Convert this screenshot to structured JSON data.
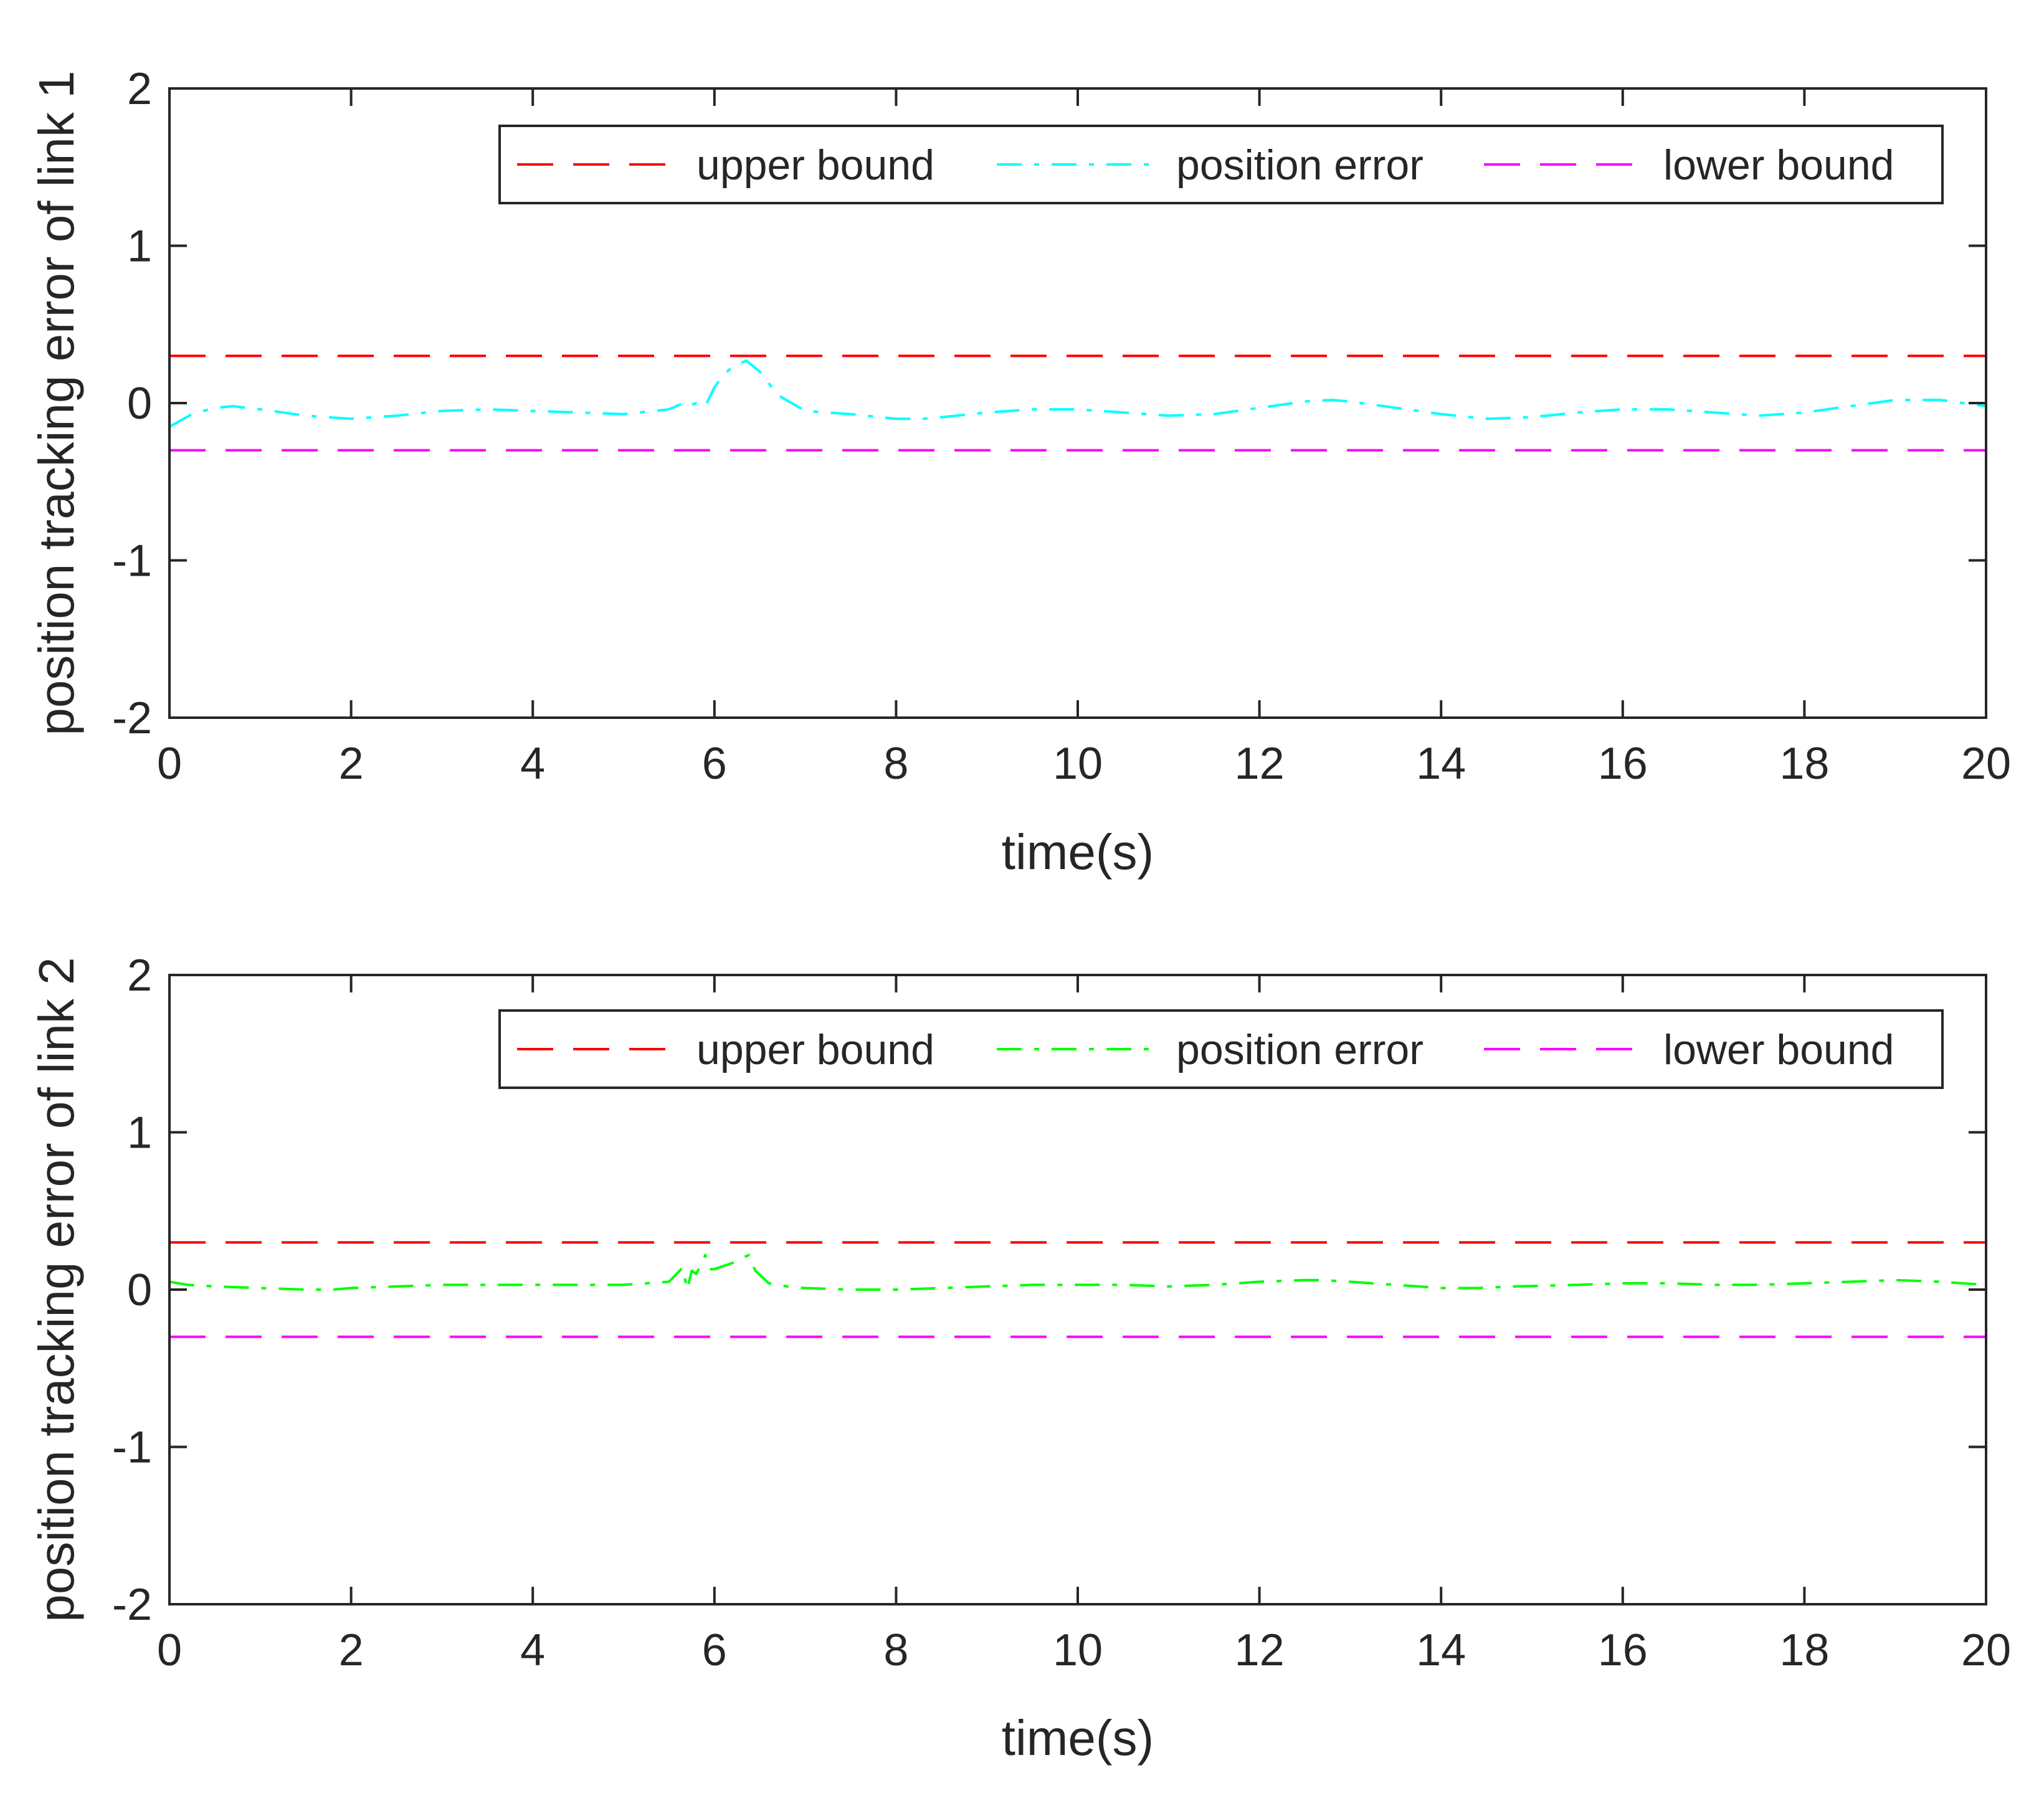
{
  "chart_data": [
    {
      "type": "line",
      "xlabel": "time(s)",
      "ylabel": "position tracking error of link 1",
      "xlim": [
        0,
        20
      ],
      "ylim": [
        -2,
        2
      ],
      "xticks": [
        0,
        2,
        4,
        6,
        8,
        10,
        12,
        14,
        16,
        18,
        20
      ],
      "xtick_labels": [
        "0",
        "2",
        "4",
        "6",
        "8",
        "10",
        "12",
        "14",
        "16",
        "18",
        "20"
      ],
      "yticks": [
        2,
        1,
        0,
        -1,
        -2
      ],
      "ytick_labels": [
        "2",
        "1",
        "0",
        "-1",
        "-2"
      ],
      "grid": false,
      "legend_position": "top-right",
      "series": [
        {
          "name": "upper bound",
          "color": "#ff0000",
          "style": "dashed",
          "x": [
            0,
            20
          ],
          "y": [
            0.3,
            0.3
          ]
        },
        {
          "name": "position error",
          "color": "#00ffff",
          "style": "dashdot",
          "x": [
            0,
            0.25,
            0.5,
            0.7,
            1.0,
            1.5,
            2.0,
            2.5,
            3.0,
            3.5,
            4.0,
            4.5,
            5.0,
            5.5,
            5.7,
            5.75,
            5.8,
            5.9,
            6.0,
            6.1,
            6.2,
            6.35,
            6.5,
            6.7,
            7.0,
            7.5,
            8.0,
            8.3,
            8.5,
            9.0,
            9.5,
            10.0,
            10.5,
            11.0,
            11.5,
            12.0,
            12.5,
            12.8,
            13.0,
            13.5,
            14.0,
            14.5,
            15.0,
            15.5,
            16.0,
            16.5,
            17.0,
            17.5,
            18.0,
            18.5,
            19.0,
            19.5,
            20.0
          ],
          "y": [
            -0.15,
            -0.07,
            -0.03,
            -0.02,
            -0.04,
            -0.08,
            -0.1,
            -0.08,
            -0.05,
            -0.04,
            -0.05,
            -0.06,
            -0.07,
            -0.04,
            0.01,
            -0.01,
            0.0,
            -0.02,
            0.1,
            0.18,
            0.23,
            0.27,
            0.2,
            0.05,
            -0.05,
            -0.07,
            -0.1,
            -0.1,
            -0.09,
            -0.06,
            -0.04,
            -0.04,
            -0.06,
            -0.08,
            -0.07,
            -0.03,
            0.01,
            0.02,
            0.01,
            -0.03,
            -0.07,
            -0.1,
            -0.09,
            -0.06,
            -0.04,
            -0.04,
            -0.06,
            -0.08,
            -0.06,
            -0.02,
            0.02,
            0.02,
            -0.02
          ]
        },
        {
          "name": "lower bound",
          "color": "#ff00ff",
          "style": "dashed",
          "x": [
            0,
            20
          ],
          "y": [
            -0.3,
            -0.3
          ]
        }
      ]
    },
    {
      "type": "line",
      "xlabel": "time(s)",
      "ylabel": "position tracking error of link 2",
      "xlim": [
        0,
        20
      ],
      "ylim": [
        -2,
        2
      ],
      "xticks": [
        0,
        2,
        4,
        6,
        8,
        10,
        12,
        14,
        16,
        18,
        20
      ],
      "xtick_labels": [
        "0",
        "2",
        "4",
        "6",
        "8",
        "10",
        "12",
        "14",
        "16",
        "18",
        "20"
      ],
      "yticks": [
        2,
        1,
        0,
        -1,
        -2
      ],
      "ytick_labels": [
        "2",
        "1",
        "0",
        "-1",
        "-2"
      ],
      "grid": false,
      "legend_position": "top-right",
      "series": [
        {
          "name": "upper bound",
          "color": "#ff0000",
          "style": "dashed",
          "x": [
            0,
            20
          ],
          "y": [
            0.3,
            0.3
          ]
        },
        {
          "name": "position error",
          "color": "#00ff00",
          "style": "dashdot",
          "x": [
            0,
            0.2,
            0.5,
            1.0,
            1.5,
            1.8,
            2.0,
            2.5,
            3.0,
            3.5,
            4.0,
            4.5,
            5.0,
            5.5,
            5.65,
            5.7,
            5.75,
            5.8,
            5.85,
            5.9,
            5.95,
            6.0,
            6.1,
            6.2,
            6.3,
            6.38,
            6.45,
            6.6,
            6.8,
            7.0,
            7.5,
            8.0,
            8.5,
            9.0,
            9.5,
            10.0,
            10.5,
            11.0,
            11.5,
            12.0,
            12.5,
            12.7,
            13.0,
            13.5,
            14.0,
            14.4,
            14.8,
            15.5,
            16.0,
            16.5,
            17.0,
            17.5,
            18.0,
            18.5,
            19.0,
            19.5,
            20.0
          ],
          "y": [
            0.05,
            0.03,
            0.02,
            0.01,
            0.0,
            0.0,
            0.01,
            0.02,
            0.03,
            0.03,
            0.03,
            0.03,
            0.03,
            0.05,
            0.14,
            0.0,
            0.12,
            0.1,
            0.16,
            0.22,
            0.13,
            0.13,
            0.15,
            0.17,
            0.2,
            0.22,
            0.12,
            0.04,
            0.02,
            0.01,
            0.0,
            0.0,
            0.01,
            0.02,
            0.03,
            0.03,
            0.03,
            0.02,
            0.03,
            0.05,
            0.06,
            0.06,
            0.05,
            0.03,
            0.01,
            0.01,
            0.02,
            0.03,
            0.04,
            0.04,
            0.03,
            0.03,
            0.04,
            0.05,
            0.06,
            0.05,
            0.03
          ]
        },
        {
          "name": "lower bound",
          "color": "#ff00ff",
          "style": "dashed",
          "x": [
            0,
            20
          ],
          "y": [
            -0.3,
            -0.3
          ]
        }
      ]
    }
  ]
}
